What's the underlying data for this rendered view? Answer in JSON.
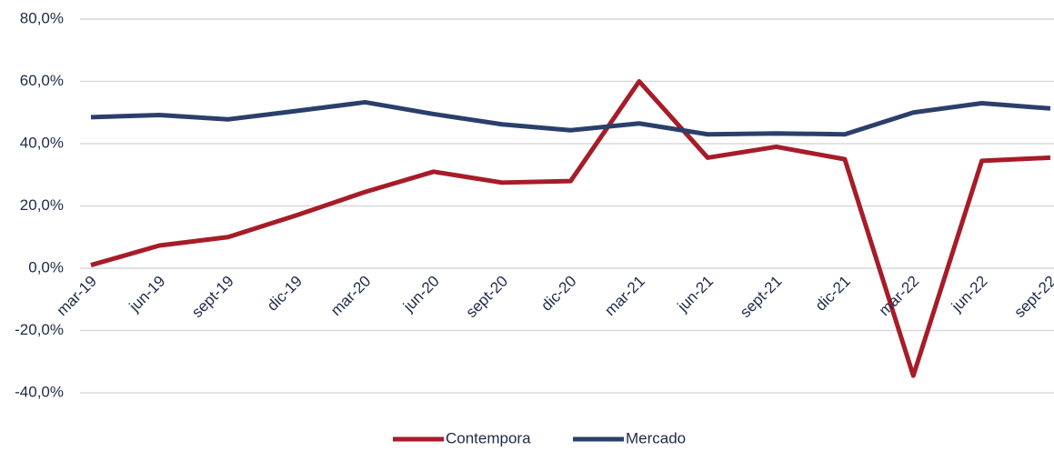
{
  "chart_data": {
    "type": "line",
    "categories": [
      "mar-19",
      "jun-19",
      "sept-19",
      "dic-19",
      "mar-20",
      "jun-20",
      "sept-20",
      "dic-20",
      "mar-21",
      "jun-21",
      "sept-21",
      "dic-21",
      "mar-22",
      "jun-22",
      "sept-22"
    ],
    "series": [
      {
        "name": "Contempora",
        "color": "#a61c28",
        "values": [
          1,
          7.3,
          10,
          17,
          24.5,
          31,
          27.5,
          28,
          60,
          35.5,
          39,
          35,
          -34.5,
          34.5,
          35.5
        ]
      },
      {
        "name": "Mercado",
        "color": "#2b3f6b",
        "values": [
          48.5,
          49.2,
          47.8,
          50.5,
          53.3,
          49.5,
          46.2,
          44.3,
          46.5,
          43,
          43.3,
          43,
          50,
          53,
          51.3
        ]
      }
    ],
    "ylim": [
      -40,
      80
    ],
    "yticks": [
      {
        "value": -40,
        "label": "-40,0%"
      },
      {
        "value": -20,
        "label": "-20,0%"
      },
      {
        "value": 0,
        "label": "0,0%"
      },
      {
        "value": 20,
        "label": "20,0%"
      },
      {
        "value": 40,
        "label": "40,0%"
      },
      {
        "value": 60,
        "label": "60,0%"
      },
      {
        "value": 80,
        "label": "80,0%"
      }
    ],
    "grid": true,
    "legend": "bottom"
  }
}
